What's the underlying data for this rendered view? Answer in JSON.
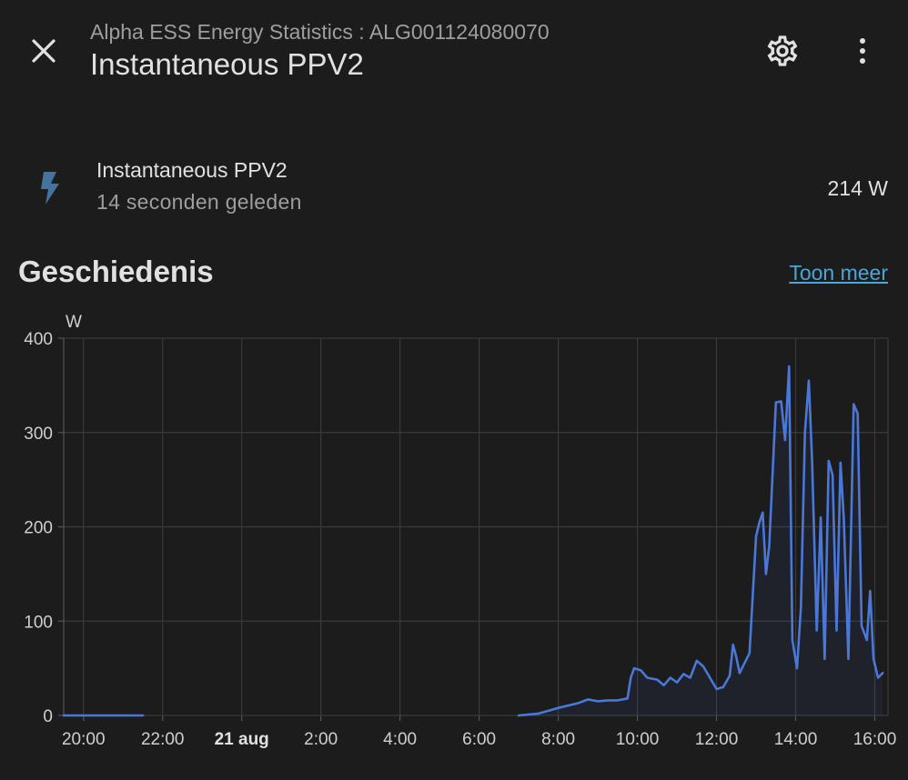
{
  "header": {
    "subtitle": "Alpha ESS Energy Statistics : ALG001124080070",
    "title": "Instantaneous PPV2",
    "icons": {
      "close": "close-icon",
      "settings": "gear-icon",
      "more": "more-vertical-icon"
    }
  },
  "entity": {
    "icon": "flash-icon",
    "name": "Instantaneous PPV2",
    "last_changed": "14 seconden geleden",
    "value": "214 W"
  },
  "history": {
    "title": "Geschiedenis",
    "show_more": "Toon meer"
  },
  "colors": {
    "background": "#1c1c1c",
    "accent_line": "#4a78d8",
    "link": "#4aa6d6",
    "icon_blue": "#44739e"
  },
  "chart_data": {
    "type": "line",
    "ylabel": "W",
    "ylim": [
      0,
      400
    ],
    "yticks": [
      0,
      100,
      200,
      300,
      400
    ],
    "xlim": [
      "2024-08-20 19:30",
      "2024-08-21 16:20"
    ],
    "xticks": [
      {
        "at": "2024-08-20 20:00",
        "label": "20:00",
        "bold": false
      },
      {
        "at": "2024-08-20 22:00",
        "label": "22:00",
        "bold": false
      },
      {
        "at": "2024-08-21 00:00",
        "label": "21 aug",
        "bold": true
      },
      {
        "at": "2024-08-21 02:00",
        "label": "2:00",
        "bold": false
      },
      {
        "at": "2024-08-21 04:00",
        "label": "4:00",
        "bold": false
      },
      {
        "at": "2024-08-21 06:00",
        "label": "6:00",
        "bold": false
      },
      {
        "at": "2024-08-21 08:00",
        "label": "8:00",
        "bold": false
      },
      {
        "at": "2024-08-21 10:00",
        "label": "10:00",
        "bold": false
      },
      {
        "at": "2024-08-21 12:00",
        "label": "12:00",
        "bold": false
      },
      {
        "at": "2024-08-21 14:00",
        "label": "14:00",
        "bold": false
      },
      {
        "at": "2024-08-21 16:00",
        "label": "16:00",
        "bold": false
      }
    ],
    "grid": true,
    "series": [
      {
        "segments": [
          [
            [
              "2024-08-20 19:30",
              0
            ],
            [
              "2024-08-20 21:30",
              0
            ]
          ],
          [
            [
              "2024-08-21 07:00",
              0
            ],
            [
              "2024-08-21 07:30",
              2
            ],
            [
              "2024-08-21 08:00",
              8
            ],
            [
              "2024-08-21 08:30",
              13
            ],
            [
              "2024-08-21 08:45",
              17
            ],
            [
              "2024-08-21 09:00",
              15
            ],
            [
              "2024-08-21 09:15",
              16
            ],
            [
              "2024-08-21 09:30",
              16
            ],
            [
              "2024-08-21 09:45",
              18
            ],
            [
              "2024-08-21 09:50",
              40
            ],
            [
              "2024-08-21 09:55",
              50
            ],
            [
              "2024-08-21 10:05",
              48
            ],
            [
              "2024-08-21 10:15",
              40
            ],
            [
              "2024-08-21 10:30",
              38
            ],
            [
              "2024-08-21 10:40",
              32
            ],
            [
              "2024-08-21 10:50",
              40
            ],
            [
              "2024-08-21 11:00",
              35
            ],
            [
              "2024-08-21 11:10",
              44
            ],
            [
              "2024-08-21 11:20",
              40
            ],
            [
              "2024-08-21 11:30",
              58
            ],
            [
              "2024-08-21 11:40",
              52
            ],
            [
              "2024-08-21 11:50",
              40
            ],
            [
              "2024-08-21 12:00",
              28
            ],
            [
              "2024-08-21 12:10",
              30
            ],
            [
              "2024-08-21 12:20",
              42
            ],
            [
              "2024-08-21 12:25",
              75
            ],
            [
              "2024-08-21 12:30",
              62
            ],
            [
              "2024-08-21 12:35",
              45
            ],
            [
              "2024-08-21 12:40",
              52
            ],
            [
              "2024-08-21 12:50",
              66
            ],
            [
              "2024-08-21 13:00",
              190
            ],
            [
              "2024-08-21 13:05",
              205
            ],
            [
              "2024-08-21 13:10",
              215
            ],
            [
              "2024-08-21 13:15",
              150
            ],
            [
              "2024-08-21 13:20",
              180
            ],
            [
              "2024-08-21 13:30",
              332
            ],
            [
              "2024-08-21 13:38",
              333
            ],
            [
              "2024-08-21 13:44",
              292
            ],
            [
              "2024-08-21 13:50",
              370
            ],
            [
              "2024-08-21 13:55",
              80
            ],
            [
              "2024-08-21 14:02",
              50
            ],
            [
              "2024-08-21 14:08",
              115
            ],
            [
              "2024-08-21 14:14",
              300
            ],
            [
              "2024-08-21 14:20",
              355
            ],
            [
              "2024-08-21 14:25",
              270
            ],
            [
              "2024-08-21 14:32",
              90
            ],
            [
              "2024-08-21 14:38",
              210
            ],
            [
              "2024-08-21 14:44",
              60
            ],
            [
              "2024-08-21 14:50",
              270
            ],
            [
              "2024-08-21 14:56",
              255
            ],
            [
              "2024-08-21 15:02",
              90
            ],
            [
              "2024-08-21 15:08",
              268
            ],
            [
              "2024-08-21 15:13",
              210
            ],
            [
              "2024-08-21 15:20",
              60
            ],
            [
              "2024-08-21 15:28",
              330
            ],
            [
              "2024-08-21 15:34",
              320
            ],
            [
              "2024-08-21 15:40",
              95
            ],
            [
              "2024-08-21 15:48",
              80
            ],
            [
              "2024-08-21 15:53",
              132
            ],
            [
              "2024-08-21 15:58",
              60
            ],
            [
              "2024-08-21 16:05",
              40
            ],
            [
              "2024-08-21 16:12",
              45
            ]
          ]
        ]
      }
    ]
  }
}
